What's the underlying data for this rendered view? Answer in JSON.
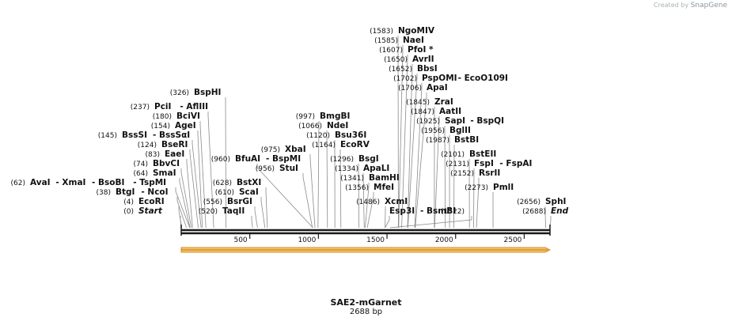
{
  "credit": {
    "prefix": "Created by",
    "brand": "SnapGene"
  },
  "plasmid": {
    "name": "SAE2-mGarnet",
    "length_label": "2688 bp",
    "length": 2688
  },
  "colors": {
    "backbone": "#1a1a1a",
    "feature_fill": "#f6c46a",
    "feature_stroke": "#d98c20",
    "leader": "#8a8a8a"
  },
  "ruler": {
    "ticks": [
      500,
      1000,
      1500,
      2000,
      2500
    ]
  },
  "sites": [
    {
      "name": "Start",
      "pos": 0,
      "pos_label": "(0)",
      "italic": true
    },
    {
      "name": "EcoRI",
      "pos": 4,
      "pos_label": "(4)"
    },
    {
      "name": "BtgI",
      "alt": "NcoI",
      "pos": 38,
      "pos_label": "(38)"
    },
    {
      "name": "AvaI",
      "alt": "XmaI",
      "alt2": "BsoBI",
      "alt3": "TspMI",
      "pos": 62,
      "pos_label": "(62)"
    },
    {
      "name": "SmaI",
      "pos": 64,
      "pos_label": "(64)"
    },
    {
      "name": "BbvCI",
      "pos": 74,
      "pos_label": "(74)"
    },
    {
      "name": "EaeI",
      "pos": 83,
      "pos_label": "(83)"
    },
    {
      "name": "BseRI",
      "pos": 124,
      "pos_label": "(124)"
    },
    {
      "name": "BssSI",
      "alt": "BssSαI",
      "pos": 145,
      "pos_label": "(145)"
    },
    {
      "name": "AgeI",
      "pos": 154,
      "pos_label": "(154)"
    },
    {
      "name": "BciVI",
      "pos": 180,
      "pos_label": "(180)"
    },
    {
      "name": "PciI",
      "alt": "AflIII",
      "pos": 237,
      "pos_label": "(237)"
    },
    {
      "name": "BspHI",
      "pos": 326,
      "pos_label": "(326)"
    },
    {
      "name": "TaqII",
      "pos": 520,
      "pos_label": "(520)"
    },
    {
      "name": "BsrGI",
      "pos": 556,
      "pos_label": "(556)"
    },
    {
      "name": "ScaI",
      "pos": 610,
      "pos_label": "(610)"
    },
    {
      "name": "BstXI",
      "pos": 628,
      "pos_label": "(628)"
    },
    {
      "name": "BfuAI",
      "alt": "BspMI",
      "pos": 960,
      "pos_label": "(960)"
    },
    {
      "name": "StuI",
      "pos": 956,
      "pos_label": "(956)"
    },
    {
      "name": "XbaI",
      "pos": 975,
      "pos_label": "(975)"
    },
    {
      "name": "BmgBI",
      "pos": 997,
      "pos_label": "(997)"
    },
    {
      "name": "NdeI",
      "pos": 1066,
      "pos_label": "(1066)"
    },
    {
      "name": "Bsu36I",
      "pos": 1120,
      "pos_label": "(1120)"
    },
    {
      "name": "EcoRV",
      "pos": 1164,
      "pos_label": "(1164)"
    },
    {
      "name": "BsgI",
      "pos": 1296,
      "pos_label": "(1296)"
    },
    {
      "name": "ApaLI",
      "pos": 1334,
      "pos_label": "(1334)"
    },
    {
      "name": "BamHI",
      "pos": 1341,
      "pos_label": "(1341)"
    },
    {
      "name": "MfeI",
      "pos": 1356,
      "pos_label": "(1356)"
    },
    {
      "name": "XcmI",
      "pos": 1486,
      "pos_label": "(1486)"
    },
    {
      "name": "Esp3I",
      "alt": "BsmBI",
      "pos": 1486,
      "pos_label": ""
    },
    {
      "name": "NgoMIV",
      "pos": 1583,
      "pos_label": "(1583)"
    },
    {
      "name": "NaeI",
      "pos": 1585,
      "pos_label": "(1585)"
    },
    {
      "name": "PfoI *",
      "pos": 1607,
      "pos_label": "(1607)"
    },
    {
      "name": "AvrII",
      "pos": 1650,
      "pos_label": "(1650)"
    },
    {
      "name": "BbsI",
      "pos": 1652,
      "pos_label": "(1652)"
    },
    {
      "name": "PspOMI",
      "alt": "EcoO109I",
      "pos": 1702,
      "pos_label": "(1702)"
    },
    {
      "name": "ApaI",
      "pos": 1706,
      "pos_label": "(1706)"
    },
    {
      "name": "ZraI",
      "pos": 1845,
      "pos_label": "(1845)"
    },
    {
      "name": "AatII",
      "pos": 1847,
      "pos_label": "(1847)"
    },
    {
      "name": "SapI",
      "alt": "BspQI",
      "pos": 1925,
      "pos_label": "(1925)"
    },
    {
      "name": "BglII",
      "pos": 1956,
      "pos_label": "(1956)"
    },
    {
      "name": "BstBI",
      "pos": 1987,
      "pos_label": "(1987)"
    },
    {
      "name": "BstEII",
      "pos": 2101,
      "pos_label": "(2101)"
    },
    {
      "name": "FspI",
      "alt": "FspAI",
      "pos": 2131,
      "pos_label": "(2131)"
    },
    {
      "name": "RsrII",
      "pos": 2152,
      "pos_label": "(2152)"
    },
    {
      "name": "PmlI",
      "pos": 2273,
      "pos_label": "(2273)"
    },
    {
      "name": "SphI",
      "pos": 2656,
      "pos_label": "(2656)"
    },
    {
      "name": "End",
      "pos": 2688,
      "pos_label": "(2688)",
      "italic": true
    },
    {
      "name": "",
      "pos": 1522,
      "pos_label": "(1522)"
    }
  ]
}
